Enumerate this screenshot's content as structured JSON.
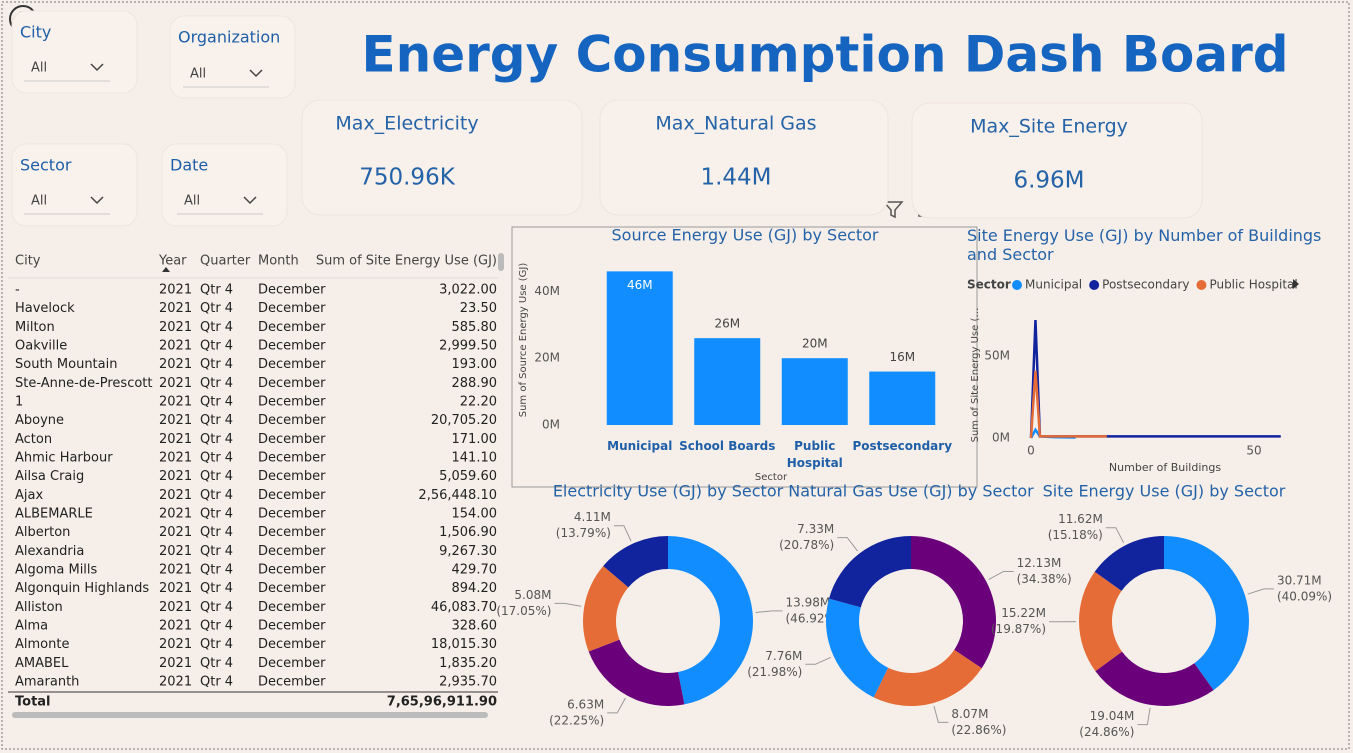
{
  "title": "Energy Consumption Dash Board",
  "slicers": [
    {
      "label": "City",
      "value": "All"
    },
    {
      "label": "Organization",
      "value": "All"
    },
    {
      "label": "Sector",
      "value": "All"
    },
    {
      "label": "Date",
      "value": "All"
    }
  ],
  "cards": [
    {
      "label": "Max_Electricity",
      "value": "750.96K"
    },
    {
      "label": "Max_Natural Gas",
      "value": "1.44M"
    },
    {
      "label": "Max_Site Energy",
      "value": "6.96M"
    }
  ],
  "table": {
    "columns": [
      "City",
      "Year",
      "Quarter",
      "Month",
      "Sum of Site Energy Use (GJ)"
    ],
    "rows": [
      [
        "-",
        "2021",
        "Qtr 4",
        "December",
        "3,022.00"
      ],
      [
        "Havelock",
        "2021",
        "Qtr 4",
        "December",
        "23.50"
      ],
      [
        "Milton",
        "2021",
        "Qtr 4",
        "December",
        "585.80"
      ],
      [
        "Oakville",
        "2021",
        "Qtr 4",
        "December",
        "2,999.50"
      ],
      [
        "South Mountain",
        "2021",
        "Qtr 4",
        "December",
        "193.00"
      ],
      [
        "Ste-Anne-de-Prescott",
        "2021",
        "Qtr 4",
        "December",
        "288.90"
      ],
      [
        "1",
        "2021",
        "Qtr 4",
        "December",
        "22.20"
      ],
      [
        "Aboyne",
        "2021",
        "Qtr 4",
        "December",
        "20,705.20"
      ],
      [
        "Acton",
        "2021",
        "Qtr 4",
        "December",
        "171.00"
      ],
      [
        "Ahmic Harbour",
        "2021",
        "Qtr 4",
        "December",
        "141.10"
      ],
      [
        "Ailsa Craig",
        "2021",
        "Qtr 4",
        "December",
        "5,059.60"
      ],
      [
        "Ajax",
        "2021",
        "Qtr 4",
        "December",
        "2,56,448.10"
      ],
      [
        "ALBEMARLE",
        "2021",
        "Qtr 4",
        "December",
        "154.00"
      ],
      [
        "Alberton",
        "2021",
        "Qtr 4",
        "December",
        "1,506.90"
      ],
      [
        "Alexandria",
        "2021",
        "Qtr 4",
        "December",
        "9,267.30"
      ],
      [
        "Algoma Mills",
        "2021",
        "Qtr 4",
        "December",
        "429.70"
      ],
      [
        "Algonquin Highlands",
        "2021",
        "Qtr 4",
        "December",
        "894.20"
      ],
      [
        "Alliston",
        "2021",
        "Qtr 4",
        "December",
        "46,083.70"
      ],
      [
        "Alma",
        "2021",
        "Qtr 4",
        "December",
        "328.60"
      ],
      [
        "Almonte",
        "2021",
        "Qtr 4",
        "December",
        "18,015.30"
      ],
      [
        "AMABEL",
        "2021",
        "Qtr 4",
        "December",
        "1,835.20"
      ],
      [
        "Amaranth",
        "2021",
        "Qtr 4",
        "December",
        "2,935.70"
      ]
    ],
    "total": [
      "Total",
      "7,65,96,911.90"
    ]
  },
  "chart_data": [
    {
      "type": "bar",
      "title": "Source Energy Use (GJ) by Sector",
      "x_label": "Sector",
      "y_label": "Sum of Source Energy Use (GJ)",
      "categories": [
        "Municipal",
        "School Boards",
        "Public Hospital",
        "Postsecondary"
      ],
      "values": [
        46000000,
        26000000,
        20000000,
        16000000
      ],
      "value_labels": [
        "46M",
        "26M",
        "20M",
        "16M"
      ],
      "color": "#118dff",
      "ylim": [
        0,
        50000000
      ],
      "yticks": [
        {
          "value": 0,
          "label": "0M"
        },
        {
          "value": 20000000,
          "label": "20M"
        },
        {
          "value": 40000000,
          "label": "40M"
        }
      ],
      "grid": false
    },
    {
      "type": "line",
      "title": "Site Energy Use (GJ) by Number of Buildings and Sector",
      "legend_title": "Sector",
      "x_label": "Number of Buildings",
      "y_label": "Sum of Site Energy Use (…",
      "series": [
        {
          "name": "Municipal",
          "color": "#118dff",
          "x": [
            0,
            1,
            2,
            5,
            10
          ],
          "values": [
            0,
            5000000,
            1000000,
            500000,
            300000
          ]
        },
        {
          "name": "Postsecondary",
          "color": "#12239e",
          "x": [
            0,
            1,
            2,
            10,
            30,
            56
          ],
          "values": [
            0,
            72000000,
            1000000,
            1000000,
            1000000,
            1000000
          ]
        },
        {
          "name": "Public Hospital",
          "color": "#e66c37",
          "x": [
            0,
            1,
            2,
            10,
            17
          ],
          "values": [
            0,
            41000000,
            1000000,
            1000000,
            1000000
          ]
        }
      ],
      "xlim": [
        0,
        56
      ],
      "xticks": [
        0,
        50
      ],
      "ylim": [
        0,
        80000000
      ],
      "yticks": [
        {
          "value": 0,
          "label": "0M"
        },
        {
          "value": 50000000,
          "label": "50M"
        }
      ]
    },
    {
      "type": "donut",
      "title": "Electricity Use (GJ) by Sector",
      "colors": [
        "#118dff",
        "#6b007b",
        "#e66c37",
        "#12239e"
      ],
      "values": [
        13980000,
        6630000,
        5080000,
        4110000
      ],
      "value_labels": [
        "13.98M",
        "6.63M",
        "5.08M",
        "4.11M"
      ],
      "percents": [
        46.92,
        22.25,
        17.05,
        13.79
      ],
      "percent_labels": [
        "(46.92%)",
        "(22.25%)",
        "(17.05%)",
        "(13.79%)"
      ]
    },
    {
      "type": "donut",
      "title": "Natural Gas Use (GJ) by Sector",
      "colors": [
        "#6b007b",
        "#e66c37",
        "#118dff",
        "#12239e"
      ],
      "values": [
        12130000,
        8070000,
        7760000,
        7330000
      ],
      "value_labels": [
        "12.13M",
        "8.07M",
        "7.76M",
        "7.33M"
      ],
      "percents": [
        34.38,
        22.86,
        21.98,
        20.78
      ],
      "percent_labels": [
        "(34.38%)",
        "(22.86%)",
        "(21.98%)",
        "(20.78%)"
      ]
    },
    {
      "type": "donut",
      "title": "Site Energy Use (GJ) by Sector",
      "colors": [
        "#118dff",
        "#6b007b",
        "#e66c37",
        "#12239e"
      ],
      "values": [
        30710000,
        19040000,
        15220000,
        11620000
      ],
      "value_labels": [
        "30.71M",
        "19.04M",
        "15.22M",
        "11.62M"
      ],
      "percents": [
        40.09,
        24.86,
        19.87,
        15.18
      ],
      "percent_labels": [
        "(40.09%)",
        "(24.86%)",
        "(19.87%)",
        "(15.18%)"
      ]
    }
  ]
}
